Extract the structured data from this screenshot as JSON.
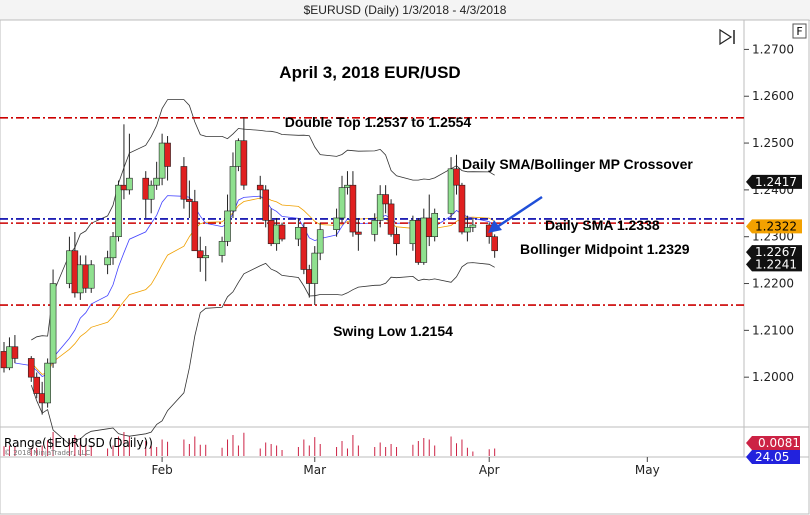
{
  "window": {
    "title": "$EURUSD (Daily)  1/3/2018 - 4/3/2018"
  },
  "buttons": {
    "f_label": "F"
  },
  "colors": {
    "up": "#8fe08f",
    "down": "#e02020",
    "band": "#333333",
    "sma": "#f0a000",
    "ema": "#4444ff",
    "dashRed": "#cc0000",
    "dashBlue": "#0000aa",
    "arrow": "#1f4fd8",
    "range": "#cc2244"
  },
  "chart_data": {
    "type": "candlestick",
    "title": "April 3, 2018 EUR/USD",
    "y_ticks": [
      "1.2700",
      "1.2600",
      "1.2500",
      "1.2400",
      "1.2300",
      "1.2200",
      "1.2100",
      "1.2000"
    ],
    "ylim": [
      1.19,
      1.275
    ],
    "x_labels": [
      "Feb",
      "Mar",
      "Apr",
      "May"
    ],
    "x_label_dates": [
      "2018-02-01",
      "2018-03-01",
      "2018-04-02",
      "2018-05-01"
    ],
    "candles": [
      {
        "date": "2018-01-03",
        "o": 1.2055,
        "h": 1.2075,
        "l": 1.201,
        "c": 1.202
      },
      {
        "date": "2018-01-04",
        "o": 1.202,
        "h": 1.2085,
        "l": 1.2015,
        "c": 1.2065
      },
      {
        "date": "2018-01-05",
        "o": 1.2065,
        "h": 1.209,
        "l": 1.203,
        "c": 1.204
      },
      {
        "date": "2018-01-08",
        "o": 1.204,
        "h": 1.2045,
        "l": 1.199,
        "c": 1.2
      },
      {
        "date": "2018-01-09",
        "o": 1.2,
        "h": 1.201,
        "l": 1.1955,
        "c": 1.1965
      },
      {
        "date": "2018-01-10",
        "o": 1.1965,
        "h": 1.199,
        "l": 1.192,
        "c": 1.1945
      },
      {
        "date": "2018-01-11",
        "o": 1.1945,
        "h": 1.204,
        "l": 1.1935,
        "c": 1.203
      },
      {
        "date": "2018-01-12",
        "o": 1.203,
        "h": 1.223,
        "l": 1.202,
        "c": 1.22
      },
      {
        "date": "2018-01-15",
        "o": 1.22,
        "h": 1.23,
        "l": 1.219,
        "c": 1.227
      },
      {
        "date": "2018-01-16",
        "o": 1.227,
        "h": 1.231,
        "l": 1.217,
        "c": 1.218
      },
      {
        "date": "2018-01-17",
        "o": 1.218,
        "h": 1.226,
        "l": 1.2165,
        "c": 1.224
      },
      {
        "date": "2018-01-18",
        "o": 1.224,
        "h": 1.226,
        "l": 1.218,
        "c": 1.219
      },
      {
        "date": "2018-01-19",
        "o": 1.219,
        "h": 1.225,
        "l": 1.218,
        "c": 1.224
      },
      {
        "date": "2018-01-22",
        "o": 1.224,
        "h": 1.227,
        "l": 1.222,
        "c": 1.2255
      },
      {
        "date": "2018-01-23",
        "o": 1.2255,
        "h": 1.231,
        "l": 1.224,
        "c": 1.23
      },
      {
        "date": "2018-01-24",
        "o": 1.23,
        "h": 1.242,
        "l": 1.229,
        "c": 1.241
      },
      {
        "date": "2018-01-25",
        "o": 1.241,
        "h": 1.254,
        "l": 1.238,
        "c": 1.24
      },
      {
        "date": "2018-01-26",
        "o": 1.24,
        "h": 1.252,
        "l": 1.239,
        "c": 1.2425
      },
      {
        "date": "2018-01-29",
        "o": 1.2425,
        "h": 1.244,
        "l": 1.234,
        "c": 1.238
      },
      {
        "date": "2018-01-30",
        "o": 1.238,
        "h": 1.242,
        "l": 1.235,
        "c": 1.241
      },
      {
        "date": "2018-01-31",
        "o": 1.241,
        "h": 1.246,
        "l": 1.24,
        "c": 1.2425
      },
      {
        "date": "2018-02-01",
        "o": 1.2425,
        "h": 1.252,
        "l": 1.241,
        "c": 1.25
      },
      {
        "date": "2018-02-02",
        "o": 1.25,
        "h": 1.2515,
        "l": 1.242,
        "c": 1.245
      },
      {
        "date": "2018-02-05",
        "o": 1.245,
        "h": 1.247,
        "l": 1.236,
        "c": 1.238
      },
      {
        "date": "2018-02-06",
        "o": 1.238,
        "h": 1.242,
        "l": 1.234,
        "c": 1.2375
      },
      {
        "date": "2018-02-07",
        "o": 1.2375,
        "h": 1.24,
        "l": 1.227,
        "c": 1.227
      },
      {
        "date": "2018-02-08",
        "o": 1.227,
        "h": 1.23,
        "l": 1.2225,
        "c": 1.2255
      },
      {
        "date": "2018-02-09",
        "o": 1.2255,
        "h": 1.228,
        "l": 1.2205,
        "c": 1.226
      },
      {
        "date": "2018-02-12",
        "o": 1.226,
        "h": 1.23,
        "l": 1.2245,
        "c": 1.229
      },
      {
        "date": "2018-02-13",
        "o": 1.229,
        "h": 1.239,
        "l": 1.228,
        "c": 1.2355
      },
      {
        "date": "2018-02-14",
        "o": 1.2355,
        "h": 1.248,
        "l": 1.234,
        "c": 1.245
      },
      {
        "date": "2018-02-15",
        "o": 1.245,
        "h": 1.251,
        "l": 1.244,
        "c": 1.2505
      },
      {
        "date": "2018-02-16",
        "o": 1.2505,
        "h": 1.2555,
        "l": 1.24,
        "c": 1.241
      },
      {
        "date": "2018-02-19",
        "o": 1.241,
        "h": 1.243,
        "l": 1.238,
        "c": 1.24
      },
      {
        "date": "2018-02-20",
        "o": 1.24,
        "h": 1.241,
        "l": 1.232,
        "c": 1.2335
      },
      {
        "date": "2018-02-21",
        "o": 1.2335,
        "h": 1.236,
        "l": 1.228,
        "c": 1.2285
      },
      {
        "date": "2018-02-22",
        "o": 1.2285,
        "h": 1.234,
        "l": 1.227,
        "c": 1.2325
      },
      {
        "date": "2018-02-23",
        "o": 1.2325,
        "h": 1.233,
        "l": 1.229,
        "c": 1.2295
      },
      {
        "date": "2018-02-26",
        "o": 1.2295,
        "h": 1.234,
        "l": 1.228,
        "c": 1.232
      },
      {
        "date": "2018-02-27",
        "o": 1.232,
        "h": 1.233,
        "l": 1.222,
        "c": 1.223
      },
      {
        "date": "2018-02-28",
        "o": 1.223,
        "h": 1.224,
        "l": 1.217,
        "c": 1.22
      },
      {
        "date": "2018-03-01",
        "o": 1.22,
        "h": 1.228,
        "l": 1.2154,
        "c": 1.2265
      },
      {
        "date": "2018-03-02",
        "o": 1.2265,
        "h": 1.233,
        "l": 1.225,
        "c": 1.2315
      },
      {
        "date": "2018-03-05",
        "o": 1.2315,
        "h": 1.236,
        "l": 1.23,
        "c": 1.234
      },
      {
        "date": "2018-03-06",
        "o": 1.234,
        "h": 1.243,
        "l": 1.233,
        "c": 1.2405
      },
      {
        "date": "2018-03-07",
        "o": 1.2405,
        "h": 1.244,
        "l": 1.239,
        "c": 1.241
      },
      {
        "date": "2018-03-08",
        "o": 1.241,
        "h": 1.244,
        "l": 1.23,
        "c": 1.231
      },
      {
        "date": "2018-03-09",
        "o": 1.231,
        "h": 1.234,
        "l": 1.227,
        "c": 1.2305
      },
      {
        "date": "2018-03-12",
        "o": 1.2305,
        "h": 1.235,
        "l": 1.229,
        "c": 1.2335
      },
      {
        "date": "2018-03-13",
        "o": 1.2335,
        "h": 1.241,
        "l": 1.232,
        "c": 1.239
      },
      {
        "date": "2018-03-14",
        "o": 1.239,
        "h": 1.241,
        "l": 1.235,
        "c": 1.237
      },
      {
        "date": "2018-03-15",
        "o": 1.237,
        "h": 1.238,
        "l": 1.23,
        "c": 1.2305
      },
      {
        "date": "2018-03-16",
        "o": 1.2305,
        "h": 1.232,
        "l": 1.226,
        "c": 1.2285
      },
      {
        "date": "2018-03-19",
        "o": 1.2285,
        "h": 1.2345,
        "l": 1.227,
        "c": 1.2335
      },
      {
        "date": "2018-03-20",
        "o": 1.2335,
        "h": 1.234,
        "l": 1.224,
        "c": 1.2245
      },
      {
        "date": "2018-03-21",
        "o": 1.2245,
        "h": 1.236,
        "l": 1.224,
        "c": 1.234
      },
      {
        "date": "2018-03-22",
        "o": 1.234,
        "h": 1.239,
        "l": 1.228,
        "c": 1.23
      },
      {
        "date": "2018-03-23",
        "o": 1.23,
        "h": 1.236,
        "l": 1.229,
        "c": 1.235
      },
      {
        "date": "2018-03-26",
        "o": 1.235,
        "h": 1.247,
        "l": 1.234,
        "c": 1.2445
      },
      {
        "date": "2018-03-27",
        "o": 1.2445,
        "h": 1.2475,
        "l": 1.239,
        "c": 1.241
      },
      {
        "date": "2018-03-28",
        "o": 1.241,
        "h": 1.2415,
        "l": 1.2305,
        "c": 1.231
      },
      {
        "date": "2018-03-29",
        "o": 1.231,
        "h": 1.2345,
        "l": 1.229,
        "c": 1.232
      },
      {
        "date": "2018-03-30",
        "o": 1.232,
        "h": 1.234,
        "l": 1.231,
        "c": 1.2325
      },
      {
        "date": "2018-04-02",
        "o": 1.2325,
        "h": 1.233,
        "l": 1.2285,
        "c": 1.23
      },
      {
        "date": "2018-04-03",
        "o": 1.23,
        "h": 1.2305,
        "l": 1.2255,
        "c": 1.227
      }
    ],
    "horizontal_lines": [
      {
        "value": 1.2554,
        "style": "dash-dot",
        "color": "#cc0000",
        "label": "Double Top 1.2537 to 1.2554"
      },
      {
        "value": 1.2154,
        "style": "dash-dot",
        "color": "#cc0000",
        "label": "Swing Low 1.2154"
      },
      {
        "value": 1.2338,
        "style": "dash-dot",
        "color": "#0000aa",
        "label": "Daily SMA 1.2338"
      },
      {
        "value": 1.2329,
        "style": "dash-dot",
        "color": "#cc0000",
        "label": "Bollinger Midpoint 1.2329"
      }
    ],
    "annotations": {
      "crossover": "Daily SMA/Bollinger MP Crossover"
    },
    "price_tags": [
      {
        "label": "1.2417",
        "value": 1.2417,
        "bg": "#111111",
        "fg": "#ffffff"
      },
      {
        "label": "1.2322",
        "value": 1.2322,
        "bg": "#f3a100",
        "fg": "#000000"
      },
      {
        "label": "1.2267",
        "value": 1.2267,
        "bg": "#111111",
        "fg": "#ffffff"
      },
      {
        "label": "1.2241",
        "value": 1.2241,
        "bg": "#111111",
        "fg": "#ffffff"
      }
    ],
    "indicator_panel": {
      "title": "Range($EURUSD (Daily))",
      "tags": [
        {
          "label": "0.0081",
          "bg": "#cc2244",
          "fg": "#ffffff"
        },
        {
          "label": "24.05",
          "bg": "#2222dd",
          "fg": "#ffffff"
        }
      ]
    },
    "copyright": "© 2018 NinjaTrader, LLC"
  }
}
